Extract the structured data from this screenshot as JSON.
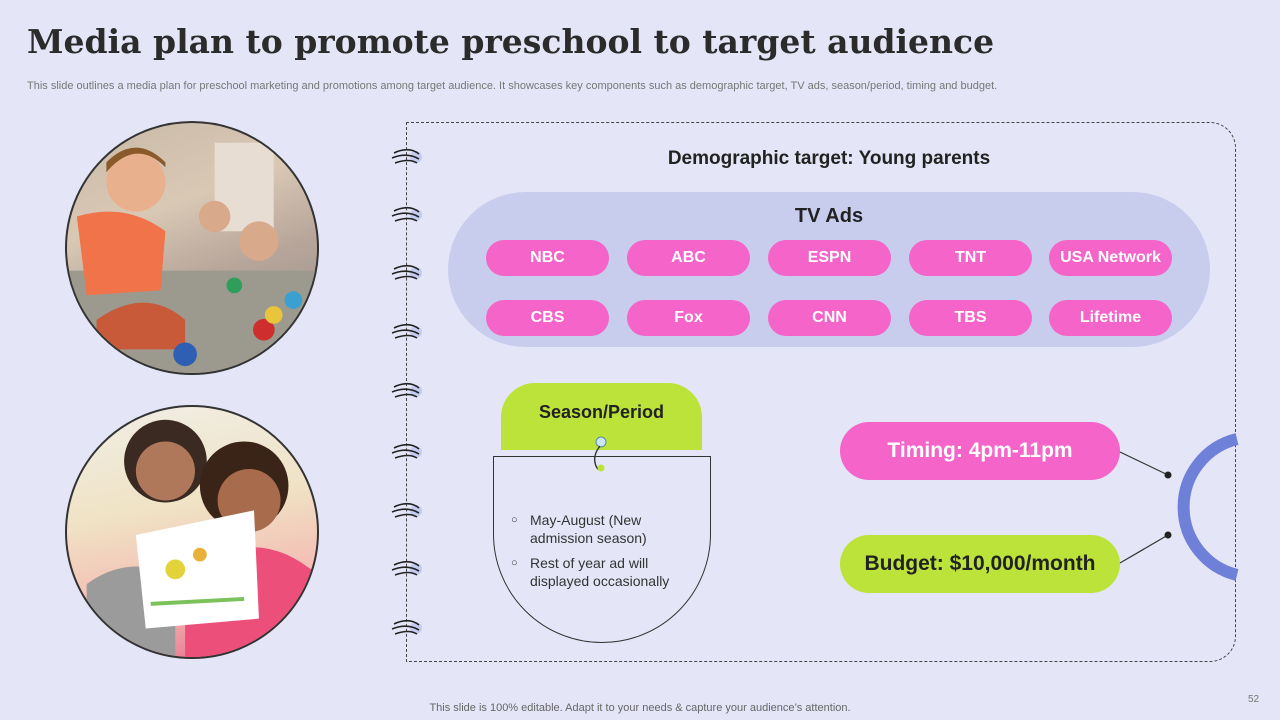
{
  "slide": {
    "title": "Media plan to promote preschool to target audience",
    "subtitle": "This slide outlines a media plan for preschool marketing and promotions among target audience. It showcases key components such as demographic target, TV ads, season/period, timing and budget.",
    "footer": "This slide is 100% editable. Adapt it to your needs & capture your audience’s attention.",
    "page_number": "52"
  },
  "demographic": {
    "title": "Demographic target: Young parents"
  },
  "tv_ads": {
    "title": "TV Ads",
    "channels": [
      "NBC",
      "ABC",
      "ESPN",
      "TNT",
      "USA Network",
      "CBS",
      "Fox",
      "CNN",
      "TBS",
      "Lifetime"
    ]
  },
  "season": {
    "label": "Season/Period",
    "bullets": [
      "May-August (New admission season)",
      "Rest of year ad will displayed occasionally"
    ]
  },
  "timing": {
    "label": "Timing: 4pm-11pm"
  },
  "budget": {
    "label": "Budget: $10,000/month"
  },
  "colors": {
    "pink": "#f564c8",
    "green": "#bce33a",
    "lavender": "#c8cdee",
    "blue_ring": "#6f80d8",
    "background": "#e4e6f7"
  },
  "images": [
    "boy-playing-with-toys-photo",
    "girl-with-drawing-photo"
  ]
}
